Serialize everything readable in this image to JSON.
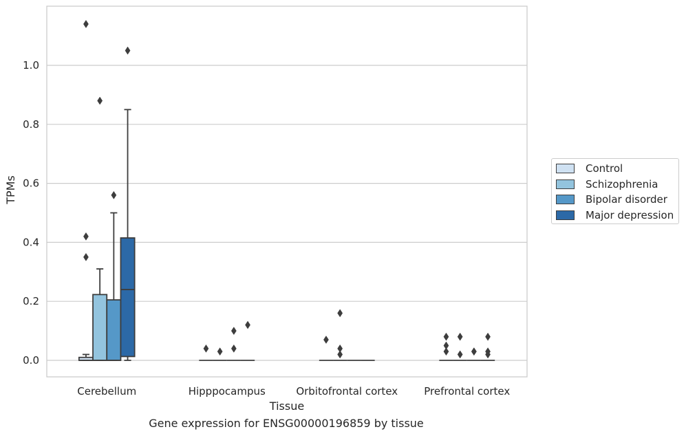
{
  "chart_data": {
    "type": "box",
    "xlabel": "Tissue",
    "ylabel": "TPMs",
    "caption": "Gene expression for ENSG00000196859 by tissue",
    "ylim": [
      -0.055,
      1.2
    ],
    "yticks": [
      "0.0",
      "0.2",
      "0.4",
      "0.6",
      "0.8",
      "1.0"
    ],
    "ytick_values": [
      0.0,
      0.2,
      0.4,
      0.6,
      0.8,
      1.0
    ],
    "grid": "horizontal",
    "legend_position": "right",
    "categories": [
      "Cerebellum",
      "Hipppocampus",
      "Orbitofrontal cortex",
      "Prefrontal cortex"
    ],
    "series": [
      {
        "name": "Control",
        "color": "#cfe1f2",
        "boxes": [
          {
            "q1": 0.0,
            "median": 0.0,
            "q3": 0.01,
            "whisker_low": 0.0,
            "whisker_high": 0.02,
            "outliers": [
              0.35,
              0.42,
              1.14
            ]
          },
          {
            "q1": 0.0,
            "median": 0.0,
            "q3": 0.0,
            "whisker_low": 0.0,
            "whisker_high": 0.0,
            "outliers": [
              0.04
            ]
          },
          {
            "q1": 0.0,
            "median": 0.0,
            "q3": 0.0,
            "whisker_low": 0.0,
            "whisker_high": 0.0,
            "outliers": [
              0.07
            ]
          },
          {
            "q1": 0.0,
            "median": 0.0,
            "q3": 0.0,
            "whisker_low": 0.0,
            "whisker_high": 0.0,
            "outliers": [
              0.03,
              0.05,
              0.08
            ]
          }
        ]
      },
      {
        "name": "Schizophrenia",
        "color": "#93c4de",
        "boxes": [
          {
            "q1": 0.0,
            "median": 0.0,
            "q3": 0.223,
            "whisker_low": 0.0,
            "whisker_high": 0.31,
            "outliers": [
              0.88
            ]
          },
          {
            "q1": 0.0,
            "median": 0.0,
            "q3": 0.0,
            "whisker_low": 0.0,
            "whisker_high": 0.0,
            "outliers": [
              0.03
            ]
          },
          {
            "q1": 0.0,
            "median": 0.0,
            "q3": 0.0,
            "whisker_low": 0.0,
            "whisker_high": 0.0,
            "outliers": [
              0.16,
              0.04,
              0.02
            ]
          },
          {
            "q1": 0.0,
            "median": 0.0,
            "q3": 0.0,
            "whisker_low": 0.0,
            "whisker_high": 0.0,
            "outliers": [
              0.02,
              0.08
            ]
          }
        ]
      },
      {
        "name": "Bipolar disorder",
        "color": "#5598c8",
        "boxes": [
          {
            "q1": 0.0,
            "median": 0.0,
            "q3": 0.205,
            "whisker_low": 0.0,
            "whisker_high": 0.5,
            "outliers": [
              0.56
            ]
          },
          {
            "q1": 0.0,
            "median": 0.0,
            "q3": 0.0,
            "whisker_low": 0.0,
            "whisker_high": 0.0,
            "outliers": [
              0.04,
              0.1
            ]
          },
          {
            "q1": 0.0,
            "median": 0.0,
            "q3": 0.0,
            "whisker_low": 0.0,
            "whisker_high": 0.0,
            "outliers": []
          },
          {
            "q1": 0.0,
            "median": 0.0,
            "q3": 0.0,
            "whisker_low": 0.0,
            "whisker_high": 0.0,
            "outliers": [
              0.03,
              0.03
            ]
          }
        ]
      },
      {
        "name": "Major depression",
        "color": "#2c69a7",
        "boxes": [
          {
            "q1": 0.013,
            "median": 0.24,
            "q3": 0.415,
            "whisker_low": 0.0,
            "whisker_high": 0.85,
            "outliers": [
              1.05
            ]
          },
          {
            "q1": 0.0,
            "median": 0.0,
            "q3": 0.0,
            "whisker_low": 0.0,
            "whisker_high": 0.0,
            "outliers": [
              0.12
            ]
          },
          {
            "q1": 0.0,
            "median": 0.0,
            "q3": 0.0,
            "whisker_low": 0.0,
            "whisker_high": 0.0,
            "outliers": []
          },
          {
            "q1": 0.0,
            "median": 0.0,
            "q3": 0.0,
            "whisker_low": 0.0,
            "whisker_high": 0.0,
            "outliers": [
              0.02,
              0.03,
              0.08
            ]
          }
        ]
      }
    ]
  }
}
